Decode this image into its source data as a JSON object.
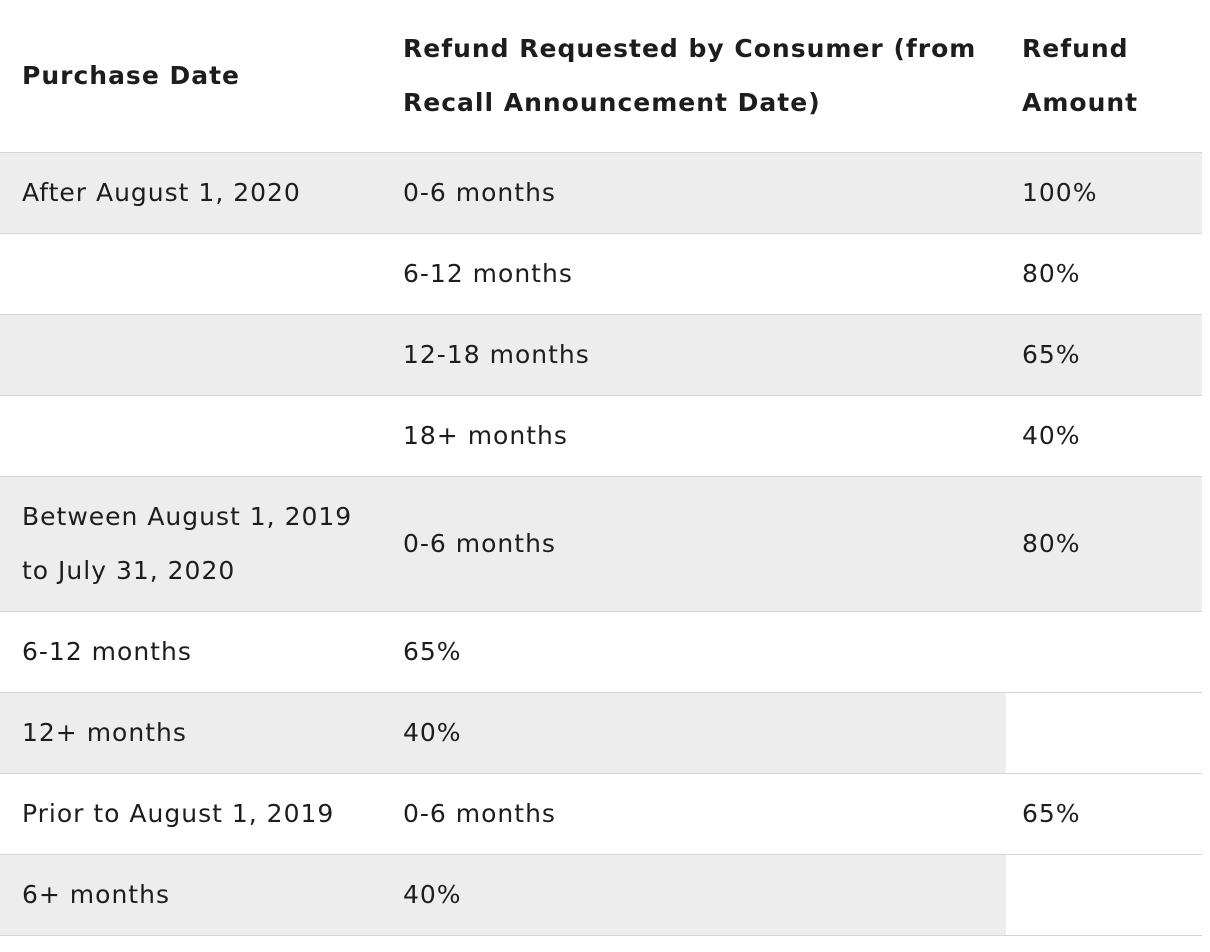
{
  "colors": {
    "row_shade": "#ededed",
    "border": "#d5d5d5",
    "text": "#1d1d1d",
    "background": "#ffffff"
  },
  "table": {
    "header": {
      "purchase_date": "Purchase Date",
      "refund_requested_line1": "Refund Requested by Consumer (from",
      "refund_requested_line2": "Recall Announcement Date)",
      "refund_amount_line1": "Refund",
      "refund_amount_line2": "Amount"
    },
    "rows": [
      {
        "c1": "After August 1, 2020",
        "c2": "0-6 months",
        "c3": "100%"
      },
      {
        "c1": "",
        "c2": "6-12 months",
        "c3": "80%"
      },
      {
        "c1": "",
        "c2": "12-18 months",
        "c3": "65%"
      },
      {
        "c1": "",
        "c2": "18+ months",
        "c3": "40%"
      },
      {
        "c1_line1": "Between August 1, 2019",
        "c1_line2": "to July 31, 2020",
        "c2": "0-6 months",
        "c3": "80%"
      },
      {
        "c1": "6-12 months",
        "c2": "65%",
        "c3": ""
      },
      {
        "c1": "12+ months",
        "c2": "40%",
        "c3": ""
      },
      {
        "c1": "Prior to August 1, 2019",
        "c2": "0-6 months",
        "c3": "65%"
      },
      {
        "c1": "6+ months",
        "c2": "40%",
        "c3": ""
      }
    ]
  }
}
